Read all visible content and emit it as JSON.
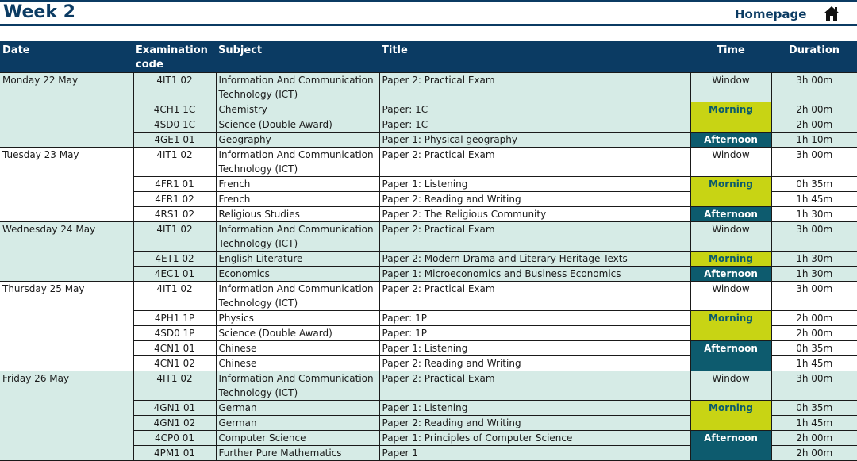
{
  "header": {
    "week_title": "Week 2",
    "homepage_label": "Homepage",
    "home_icon": "home-icon"
  },
  "table": {
    "columns": [
      "Date",
      "Examination code",
      "Subject",
      "Title",
      "Time",
      "Duration"
    ],
    "days": [
      {
        "date": "Monday 22 May",
        "shade": "light",
        "rows": [
          {
            "code": "4IT1 02",
            "subject": "Information And Communication Technology (ICT)",
            "title": "Paper 2: Practical Exam",
            "duration": "3h 00m"
          },
          {
            "code": "4CH1 1C",
            "subject": "Chemistry",
            "title": "Paper: 1C",
            "duration": "2h 00m"
          },
          {
            "code": "4SD0 1C",
            "subject": "Science (Double Award)",
            "title": "Paper: 1C",
            "duration": "2h 00m"
          },
          {
            "code": "4GE1 01",
            "subject": "Geography",
            "title": "Paper 1: Physical geography",
            "duration": "1h 10m"
          }
        ],
        "times": [
          {
            "label": "Window",
            "kind": "window",
            "rows": 1
          },
          {
            "label": "Morning",
            "kind": "morning",
            "rows": 2
          },
          {
            "label": "Afternoon",
            "kind": "afternoon",
            "rows": 1
          }
        ]
      },
      {
        "date": "Tuesday 23 May",
        "shade": "white",
        "rows": [
          {
            "code": "4IT1 02",
            "subject": "Information And Communication Technology (ICT)",
            "title": "Paper 2: Practical Exam",
            "duration": "3h 00m"
          },
          {
            "code": "4FR1 01",
            "subject": "French",
            "title": "Paper 1: Listening",
            "duration": "0h 35m"
          },
          {
            "code": "4FR1 02",
            "subject": "French",
            "title": "Paper 2: Reading and Writing",
            "duration": "1h 45m"
          },
          {
            "code": "4RS1 02",
            "subject": "Religious Studies",
            "title": "Paper 2: The Religious Community",
            "duration": "1h 30m"
          }
        ],
        "times": [
          {
            "label": "Window",
            "kind": "window",
            "rows": 1
          },
          {
            "label": "Morning",
            "kind": "morning",
            "rows": 2
          },
          {
            "label": "Afternoon",
            "kind": "afternoon",
            "rows": 1
          }
        ]
      },
      {
        "date": "Wednesday 24 May",
        "shade": "light",
        "rows": [
          {
            "code": "4IT1 02",
            "subject": "Information And Communication Technology (ICT)",
            "title": "Paper 2: Practical Exam",
            "duration": "3h 00m"
          },
          {
            "code": "4ET1 02",
            "subject": "English Literature",
            "title": "Paper 2: Modern Drama and Literary Heritage Texts",
            "duration": "1h 30m"
          },
          {
            "code": "4EC1 01",
            "subject": "Economics",
            "title": "Paper 1: Microeconomics and Business Economics",
            "duration": "1h 30m"
          }
        ],
        "times": [
          {
            "label": "Window",
            "kind": "window",
            "rows": 1
          },
          {
            "label": "Morning",
            "kind": "morning",
            "rows": 1
          },
          {
            "label": "Afternoon",
            "kind": "afternoon",
            "rows": 1
          }
        ]
      },
      {
        "date": "Thursday 25 May",
        "shade": "white",
        "rows": [
          {
            "code": "4IT1 02",
            "subject": "Information And Communication Technology (ICT)",
            "title": "Paper 2: Practical Exam",
            "duration": "3h 00m"
          },
          {
            "code": "4PH1 1P",
            "subject": "Physics",
            "title": "Paper: 1P",
            "duration": "2h 00m"
          },
          {
            "code": "4SD0 1P",
            "subject": "Science (Double Award)",
            "title": "Paper: 1P",
            "duration": "2h 00m"
          },
          {
            "code": "4CN1 01",
            "subject": "Chinese",
            "title": "Paper 1: Listening",
            "duration": "0h 35m"
          },
          {
            "code": "4CN1 02",
            "subject": "Chinese",
            "title": "Paper 2: Reading and Writing",
            "duration": "1h 45m"
          }
        ],
        "times": [
          {
            "label": "Window",
            "kind": "window",
            "rows": 1
          },
          {
            "label": "Morning",
            "kind": "morning",
            "rows": 2
          },
          {
            "label": "Afternoon",
            "kind": "afternoon",
            "rows": 2
          }
        ]
      },
      {
        "date": "Friday 26 May",
        "shade": "light",
        "rows": [
          {
            "code": "4IT1 02",
            "subject": "Information And Communication Technology (ICT)",
            "title": "Paper 2: Practical Exam",
            "duration": "3h 00m"
          },
          {
            "code": "4GN1 01",
            "subject": "German",
            "title": "Paper 1: Listening",
            "duration": "0h 35m"
          },
          {
            "code": "4GN1 02",
            "subject": "German",
            "title": "Paper 2: Reading and Writing",
            "duration": "1h 45m"
          },
          {
            "code": "4CP0 01",
            "subject": "Computer Science",
            "title": "Paper 1: Principles of Computer Science",
            "duration": "2h 00m"
          },
          {
            "code": "4PM1 01",
            "subject": "Further Pure Mathematics",
            "title": "Paper 1",
            "duration": "2h 00m"
          }
        ],
        "times": [
          {
            "label": "Window",
            "kind": "window",
            "rows": 1
          },
          {
            "label": "Morning",
            "kind": "morning",
            "rows": 2
          },
          {
            "label": "Afternoon",
            "kind": "afternoon",
            "rows": 2
          }
        ]
      }
    ]
  },
  "colors": {
    "navy": "#0b3b63",
    "light_row": "#d6ebe6",
    "morning": "#c8d414",
    "afternoon": "#0d5b6e"
  }
}
